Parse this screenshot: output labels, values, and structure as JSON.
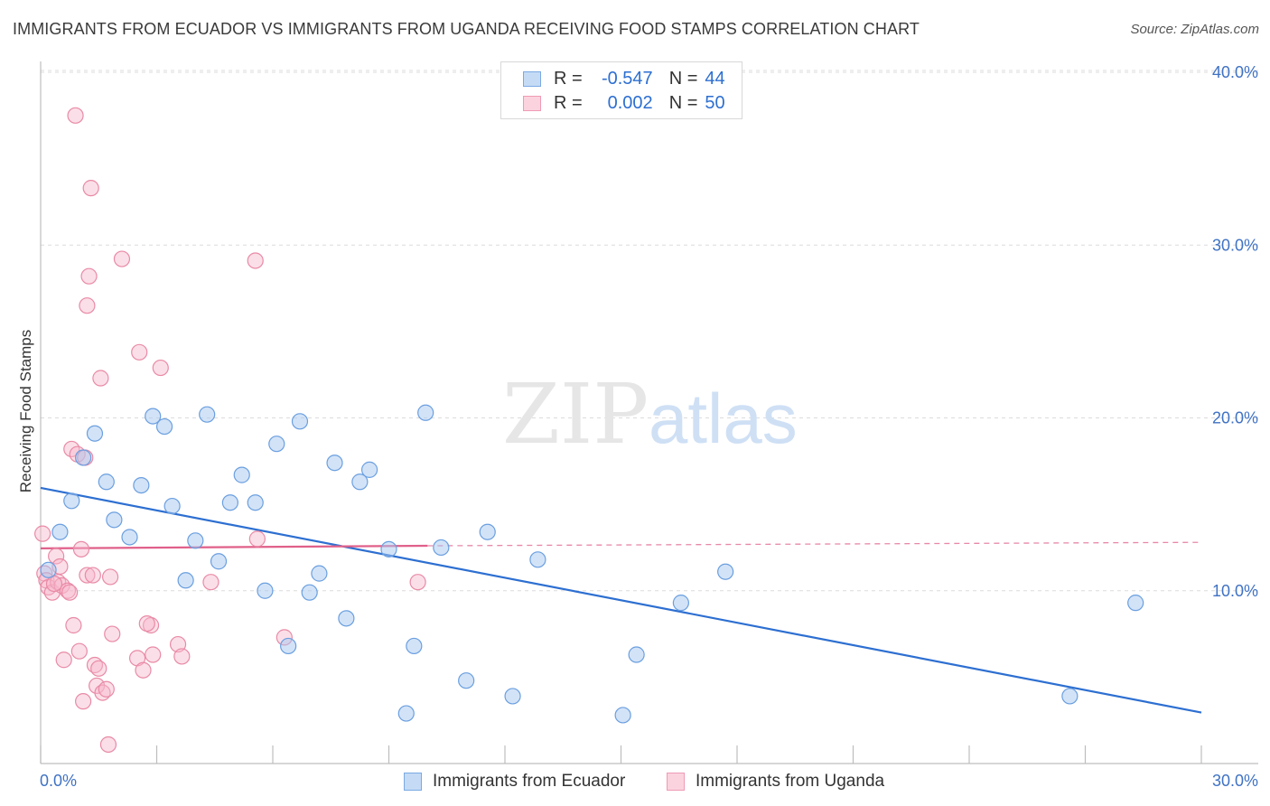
{
  "title": "IMMIGRANTS FROM ECUADOR VS IMMIGRANTS FROM UGANDA RECEIVING FOOD STAMPS CORRELATION CHART",
  "source": "Source: ZipAtlas.com",
  "watermark": {
    "zip": "ZIP",
    "atlas": "atlas"
  },
  "legend": {
    "r_label": "R =",
    "n_label": "N =",
    "ecuador": {
      "r": "-0.547",
      "n": "44"
    },
    "uganda": {
      "r": "0.002",
      "n": "50"
    }
  },
  "colors": {
    "ecuador_fill": "#a8c8f0",
    "ecuador_stroke": "#6a9fe0",
    "ecuador_line": "#2d6fd1",
    "uganda_fill": "#f7b8cb",
    "uganda_stroke": "#e98aa6",
    "uganda_line": "#e0608a",
    "tick_text": "#3f72c4"
  },
  "chart_data": {
    "type": "scatter",
    "title": "IMMIGRANTS FROM ECUADOR VS IMMIGRANTS FROM UGANDA RECEIVING FOOD STAMPS CORRELATION CHART",
    "xlabel": "",
    "ylabel": "Receiving Food Stamps",
    "xlim": [
      0,
      30
    ],
    "ylim": [
      0,
      40
    ],
    "x_tick_labels": [
      "0.0%",
      "30.0%"
    ],
    "y_ticks": [
      10,
      20,
      30,
      40
    ],
    "y_tick_labels": [
      "10.0%",
      "20.0%",
      "30.0%",
      "40.0%"
    ],
    "grid": "horizontal dashed",
    "legend_position": "top-center",
    "series": [
      {
        "name": "Immigrants from Ecuador",
        "points": [
          [
            0.2,
            11.2
          ],
          [
            0.5,
            13.4
          ],
          [
            0.8,
            15.2
          ],
          [
            1.1,
            17.7
          ],
          [
            1.4,
            19.1
          ],
          [
            1.7,
            16.3
          ],
          [
            1.9,
            14.1
          ],
          [
            2.3,
            13.1
          ],
          [
            2.6,
            16.1
          ],
          [
            2.9,
            20.1
          ],
          [
            3.2,
            19.5
          ],
          [
            3.4,
            14.9
          ],
          [
            3.75,
            10.6
          ],
          [
            4.0,
            12.9
          ],
          [
            4.3,
            20.2
          ],
          [
            4.6,
            11.7
          ],
          [
            4.9,
            15.1
          ],
          [
            5.2,
            16.7
          ],
          [
            5.55,
            15.1
          ],
          [
            5.8,
            10.0
          ],
          [
            6.1,
            18.5
          ],
          [
            6.4,
            6.8
          ],
          [
            6.7,
            19.8
          ],
          [
            6.95,
            9.9
          ],
          [
            7.2,
            11.0
          ],
          [
            7.6,
            17.4
          ],
          [
            7.9,
            8.4
          ],
          [
            8.25,
            16.3
          ],
          [
            8.5,
            17.0
          ],
          [
            9.0,
            12.4
          ],
          [
            9.45,
            2.9
          ],
          [
            9.65,
            6.8
          ],
          [
            9.95,
            20.3
          ],
          [
            10.35,
            12.5
          ],
          [
            11.0,
            4.8
          ],
          [
            11.55,
            13.4
          ],
          [
            12.2,
            3.9
          ],
          [
            12.85,
            11.8
          ],
          [
            15.05,
            2.8
          ],
          [
            15.4,
            6.3
          ],
          [
            16.55,
            9.3
          ],
          [
            17.7,
            11.1
          ],
          [
            26.6,
            3.9
          ],
          [
            28.3,
            9.3
          ]
        ],
        "trend": {
          "x": [
            0,
            30
          ],
          "y": [
            15.95,
            2.95
          ]
        }
      },
      {
        "name": "Immigrants from Uganda",
        "points": [
          [
            0.05,
            13.3
          ],
          [
            0.1,
            11.0
          ],
          [
            0.15,
            10.6
          ],
          [
            0.2,
            10.2
          ],
          [
            0.3,
            9.9
          ],
          [
            0.4,
            12.0
          ],
          [
            0.45,
            10.5
          ],
          [
            0.55,
            10.3
          ],
          [
            0.6,
            6.0
          ],
          [
            0.7,
            10.0
          ],
          [
            0.75,
            9.9
          ],
          [
            0.8,
            18.2
          ],
          [
            0.85,
            8.0
          ],
          [
            0.9,
            37.5
          ],
          [
            0.95,
            17.9
          ],
          [
            1.0,
            6.5
          ],
          [
            1.05,
            12.4
          ],
          [
            1.1,
            3.6
          ],
          [
            1.2,
            10.9
          ],
          [
            1.25,
            28.2
          ],
          [
            1.3,
            33.3
          ],
          [
            1.35,
            10.9
          ],
          [
            1.4,
            5.7
          ],
          [
            1.45,
            4.5
          ],
          [
            1.5,
            5.5
          ],
          [
            1.55,
            22.3
          ],
          [
            1.6,
            4.1
          ],
          [
            1.7,
            4.3
          ],
          [
            1.75,
            1.1
          ],
          [
            1.8,
            10.8
          ],
          [
            1.85,
            7.5
          ],
          [
            1.2,
            26.5
          ],
          [
            2.1,
            29.2
          ],
          [
            2.5,
            6.1
          ],
          [
            2.55,
            23.8
          ],
          [
            2.65,
            5.4
          ],
          [
            2.85,
            8.0
          ],
          [
            2.9,
            6.3
          ],
          [
            3.1,
            22.9
          ],
          [
            3.55,
            6.9
          ],
          [
            3.65,
            6.2
          ],
          [
            4.4,
            10.5
          ],
          [
            5.55,
            29.1
          ],
          [
            5.6,
            13.0
          ],
          [
            6.3,
            7.3
          ],
          [
            9.75,
            10.5
          ],
          [
            0.5,
            11.4
          ],
          [
            1.15,
            17.7
          ],
          [
            0.35,
            10.4
          ],
          [
            2.75,
            8.1
          ]
        ],
        "trend": {
          "x_solid": [
            0,
            10
          ],
          "y_solid": [
            12.45,
            12.6
          ],
          "x_dashed": [
            10,
            30
          ],
          "y_dashed": [
            12.6,
            12.8
          ]
        }
      }
    ]
  },
  "axis": {
    "x_left": "0.0%",
    "x_right": "30.0%",
    "ylabel": "Receiving Food Stamps"
  },
  "bottom_legend": {
    "ecuador": "Immigrants from Ecuador",
    "uganda": "Immigrants from Uganda"
  }
}
